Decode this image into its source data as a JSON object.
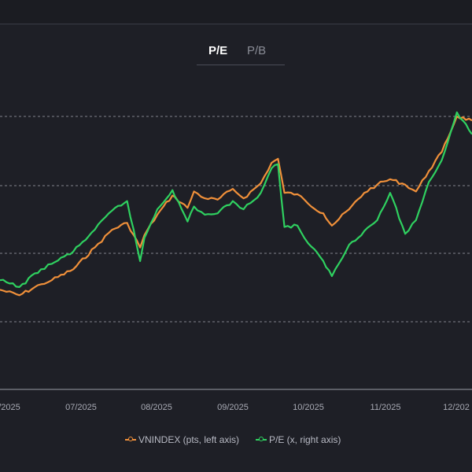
{
  "tabs": [
    {
      "label": "P/E",
      "active": true
    },
    {
      "label": "P/B",
      "active": false
    }
  ],
  "colors": {
    "vnindex": "#f0903a",
    "pe": "#2fd160",
    "grid": "#9a9ca6",
    "tick": "#a8aab4"
  },
  "chart_data": {
    "type": "line",
    "x_ticks": [
      "/2025",
      "07/2025",
      "08/2025",
      "09/2025",
      "10/2025",
      "11/2025",
      "12/202"
    ],
    "x_range": [
      "2025-05-27",
      "2026-01-01"
    ],
    "grid": true,
    "legend": "bottom-center",
    "series": [
      {
        "name": "VNINDEX (pts, left axis)",
        "color": "#f0903a",
        "x": [
          "2025-05-27",
          "2025-06-05",
          "2025-06-15",
          "2025-06-20",
          "2025-06-30",
          "2025-07-10",
          "2025-07-18",
          "2025-07-25",
          "2025-07-31",
          "2025-08-02",
          "2025-08-08",
          "2025-08-15",
          "2025-08-22",
          "2025-08-25",
          "2025-08-30",
          "2025-09-05",
          "2025-09-12",
          "2025-09-17",
          "2025-09-25",
          "2025-09-30",
          "2025-10-03",
          "2025-10-06",
          "2025-10-12",
          "2025-10-17",
          "2025-10-24",
          "2025-10-28",
          "2025-11-05",
          "2025-11-12",
          "2025-11-18",
          "2025-11-24",
          "2025-12-01",
          "2025-12-06",
          "2025-12-12",
          "2025-12-18",
          "2025-12-25",
          "2026-01-01"
        ],
        "y": [
          0.365,
          0.345,
          0.385,
          0.4,
          0.44,
          0.52,
          0.585,
          0.61,
          0.52,
          0.565,
          0.64,
          0.71,
          0.665,
          0.725,
          0.7,
          0.695,
          0.735,
          0.7,
          0.755,
          0.83,
          0.845,
          0.72,
          0.715,
          0.68,
          0.645,
          0.6,
          0.66,
          0.72,
          0.75,
          0.77,
          0.75,
          0.725,
          0.8,
          0.87,
          1.0,
          0.985
        ]
      },
      {
        "name": "P/E (x, right axis)",
        "color": "#2fd160",
        "x": [
          "2025-05-27",
          "2025-06-05",
          "2025-06-15",
          "2025-06-20",
          "2025-06-30",
          "2025-07-10",
          "2025-07-18",
          "2025-07-25",
          "2025-07-31",
          "2025-08-02",
          "2025-08-08",
          "2025-08-15",
          "2025-08-22",
          "2025-08-25",
          "2025-08-30",
          "2025-09-05",
          "2025-09-12",
          "2025-09-17",
          "2025-09-25",
          "2025-09-30",
          "2025-10-03",
          "2025-10-06",
          "2025-10-12",
          "2025-10-17",
          "2025-10-24",
          "2025-10-28",
          "2025-11-05",
          "2025-11-12",
          "2025-11-18",
          "2025-11-24",
          "2025-12-01",
          "2025-12-06",
          "2025-12-12",
          "2025-12-18",
          "2025-12-25",
          "2026-01-01"
        ],
        "y": [
          0.4,
          0.375,
          0.44,
          0.46,
          0.505,
          0.585,
          0.655,
          0.69,
          0.47,
          0.555,
          0.66,
          0.73,
          0.615,
          0.67,
          0.64,
          0.645,
          0.69,
          0.66,
          0.72,
          0.81,
          0.825,
          0.595,
          0.6,
          0.535,
          0.47,
          0.415,
          0.53,
          0.58,
          0.62,
          0.72,
          0.57,
          0.62,
          0.76,
          0.84,
          1.015,
          0.935
        ]
      }
    ]
  }
}
